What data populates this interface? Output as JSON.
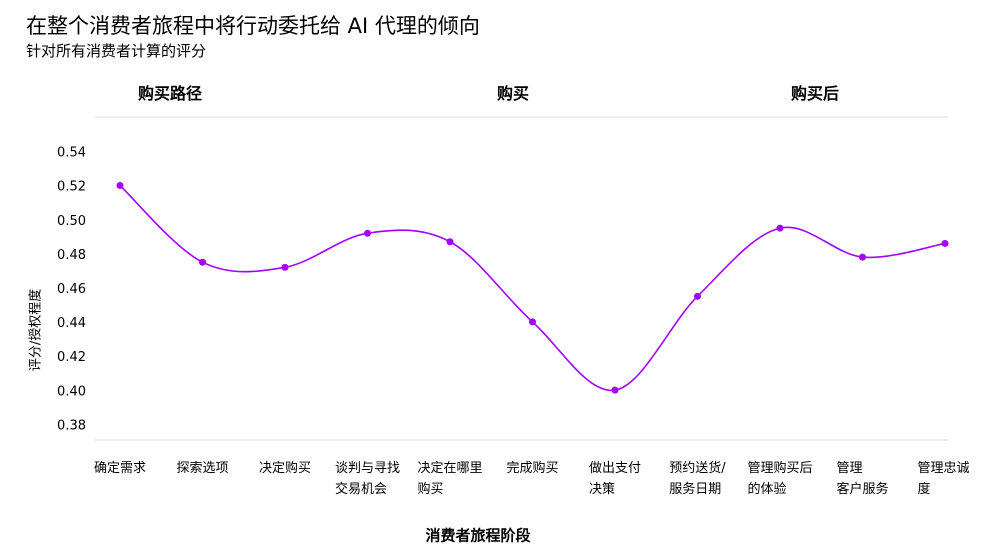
{
  "chart_data": {
    "type": "line",
    "title": "在整个消费者旅程中将行动委托给 AI 代理的倾向",
    "subtitle": "针对所有消费者计算的评分",
    "stage_groups": [
      "购买路径",
      "购买",
      "购买后"
    ],
    "y_label": "评分/授权程度",
    "x_label": "消费者旅程阶段",
    "categories": [
      "确定需求",
      "探索选项",
      "决定购买",
      "谈判与寻找\n交易机会",
      "决定在哪里\n购买",
      "完成购买",
      "做出支付\n决策",
      "预约送货/\n服务日期",
      "管理购买后\n的体验",
      "管理\n客户服务",
      "管理忠诚度"
    ],
    "series": [
      {
        "name": "评分",
        "color": "#a100ff",
        "values": [
          0.521,
          0.476,
          0.473,
          0.493,
          0.488,
          0.441,
          0.401,
          0.456,
          0.496,
          0.479,
          0.487
        ]
      }
    ],
    "ylim": [
      0.37,
      0.55
    ],
    "yticks": [
      0.38,
      {
        "value": 0.4,
        "label": "0.40"
      },
      0.42,
      0.44,
      0.46,
      0.48,
      {
        "value": 0.5,
        "label": "0.50"
      },
      0.52,
      0.54
    ],
    "smooth": true
  }
}
